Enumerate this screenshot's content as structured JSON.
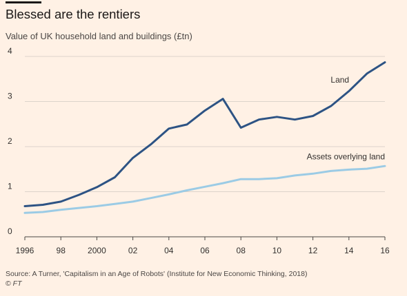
{
  "chart_data": {
    "type": "line",
    "title": "Blessed are the rentiers",
    "subtitle": "Value of UK household land and buildings (£tn)",
    "x": [
      1996,
      1997,
      1998,
      1999,
      2000,
      2001,
      2002,
      2003,
      2004,
      2005,
      2006,
      2007,
      2008,
      2009,
      2010,
      2011,
      2012,
      2013,
      2014,
      2015,
      2016
    ],
    "xtick_values": [
      1996,
      1998,
      2000,
      2002,
      2004,
      2006,
      2008,
      2010,
      2012,
      2014,
      2016
    ],
    "xtick_labels": [
      "1996",
      "98",
      "2000",
      "02",
      "04",
      "06",
      "08",
      "10",
      "12",
      "14",
      "16"
    ],
    "ylim": [
      0,
      4
    ],
    "yticks": [
      "0",
      "1",
      "2",
      "3",
      "4"
    ],
    "grid": true,
    "series": [
      {
        "name": "Land",
        "color": "#2d5384",
        "values": [
          0.68,
          0.71,
          0.78,
          0.93,
          1.1,
          1.32,
          1.75,
          2.05,
          2.4,
          2.49,
          2.8,
          3.06,
          2.42,
          2.6,
          2.66,
          2.6,
          2.68,
          2.9,
          3.23,
          3.62,
          3.87
        ]
      },
      {
        "name": "Assets overlying land",
        "color": "#9bcbe5",
        "values": [
          0.53,
          0.55,
          0.6,
          0.64,
          0.68,
          0.73,
          0.78,
          0.86,
          0.94,
          1.03,
          1.11,
          1.19,
          1.28,
          1.28,
          1.3,
          1.36,
          1.4,
          1.46,
          1.49,
          1.51,
          1.57
        ]
      }
    ]
  },
  "footer": {
    "source": "Source: A Turner, 'Capitalism in an Age of Robots' (Institute for New Economic Thinking, 2018)",
    "copyright_symbol": "©",
    "brand": "FT"
  },
  "colors": {
    "background": "#fff1e5",
    "gridline": "#dcd3ca",
    "axis": "#4a4644",
    "text": "#33302e"
  }
}
